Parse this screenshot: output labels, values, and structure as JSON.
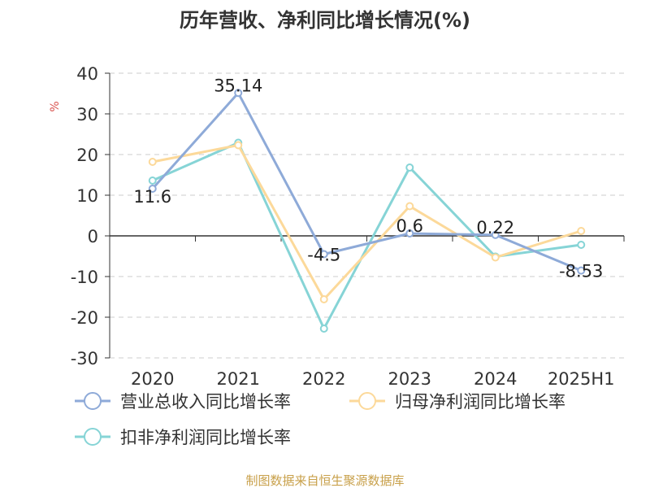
{
  "chart_data": {
    "type": "line",
    "title": "历年营收、净利同比增长情况(%)",
    "ylabel": "%",
    "categories": [
      "2020",
      "2021",
      "2022",
      "2023",
      "2024",
      "2025H1"
    ],
    "ylim": [
      -30,
      40
    ],
    "yticks": [
      40,
      30,
      20,
      10,
      0,
      -10,
      -20,
      -30
    ],
    "grid": true,
    "legend_position": "bottom",
    "series": [
      {
        "name": "营业总收入同比增长率",
        "color": "#8eaad8",
        "values": [
          11.6,
          35.14,
          -4.5,
          0.6,
          0.22,
          -8.53
        ],
        "labels": [
          "11.6",
          "35.14",
          "-4.5",
          "0.6",
          "0.22",
          "-8.53"
        ]
      },
      {
        "name": "归母净利润同比增长率",
        "color": "#fcd99a",
        "values": [
          18.2,
          22.3,
          -15.6,
          7.3,
          -5.3,
          1.2
        ],
        "labels": []
      },
      {
        "name": "扣非净利润同比增长率",
        "color": "#86d4d6",
        "values": [
          13.6,
          22.9,
          -22.8,
          16.8,
          -5.1,
          -2.2
        ],
        "labels": []
      }
    ]
  },
  "footer": {
    "source": "制图数据来自恒生聚源数据库"
  }
}
